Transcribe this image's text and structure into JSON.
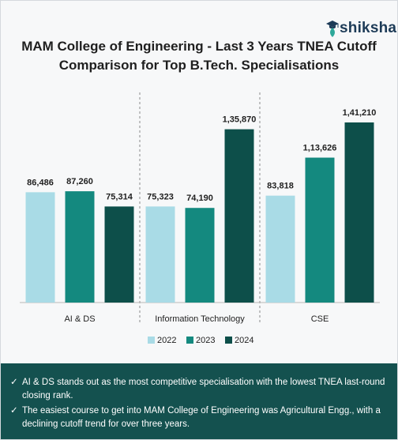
{
  "brand": {
    "name": "shiksha",
    "accent_color": "#1d3b57",
    "icon": "graduate-cap-icon"
  },
  "title_lines": [
    "MAM College of Engineering - Last 3 Years TNEA Cutoff",
    "Comparison for Top B.Tech. Specialisations"
  ],
  "chart_data": {
    "type": "bar",
    "title": "MAM College of Engineering - Last 3 Years TNEA Cutoff Comparison for Top B.Tech. Specialisations",
    "categories": [
      "AI & DS",
      "Information Technology",
      "CSE"
    ],
    "series": [
      {
        "name": "2022",
        "color": "#a9dbe6",
        "values": [
          86486,
          75323,
          83818
        ],
        "labels": [
          "86,486",
          "75,323",
          "83,818"
        ]
      },
      {
        "name": "2023",
        "color": "#14897f",
        "values": [
          87260,
          74190,
          113626
        ],
        "labels": [
          "87,260",
          "74,190",
          "1,13,626"
        ]
      },
      {
        "name": "2024",
        "color": "#0d4f4a",
        "values": [
          75314,
          135870,
          141210
        ],
        "labels": [
          "75,314",
          "1,35,870",
          "1,41,210"
        ]
      }
    ],
    "ylim": [
      0,
      160000
    ],
    "grid": false,
    "legend_position": "bottom"
  },
  "notes": {
    "tick": "✓",
    "items": [
      "AI & DS stands out as the most competitive specialisation with the lowest TNEA last-round closing rank.",
      "The easiest course to get into MAM College of Engineering was Agricultural Engg., with a declining cutoff trend for over three years."
    ]
  }
}
